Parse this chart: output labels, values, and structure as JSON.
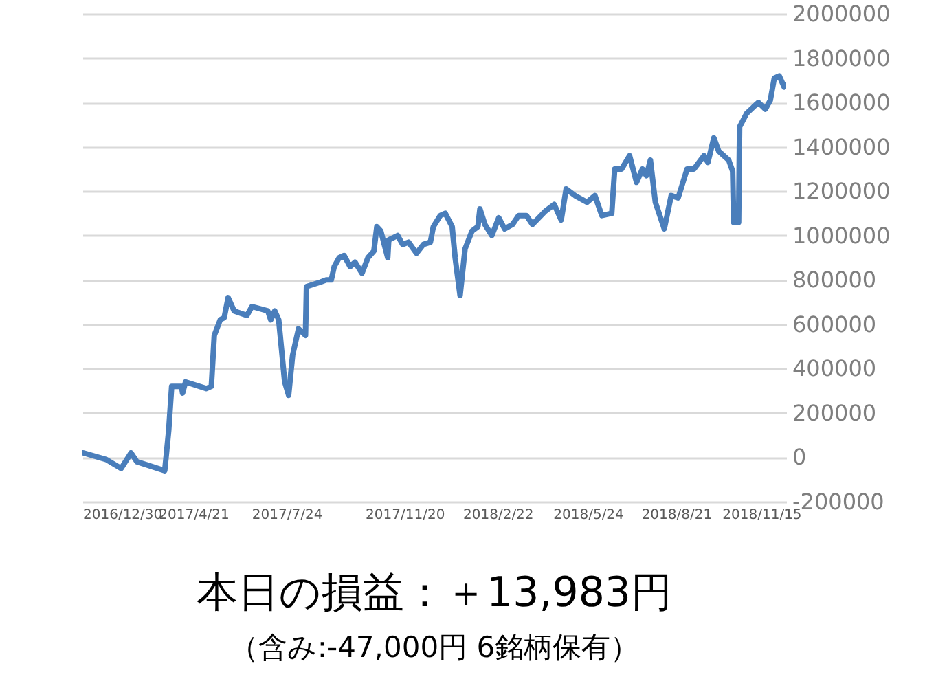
{
  "chart_data": {
    "type": "line",
    "title": "本日の損益：＋13,983円",
    "subtitle": "（含み:-47,000円  6銘柄保有）",
    "x": [
      "2016-12-31",
      "2017-01-23",
      "2017-02-07",
      "2017-02-17",
      "2017-02-23",
      "2017-03-09",
      "2017-03-23",
      "2017-03-27",
      "2017-03-30",
      "2017-04-09",
      "2017-04-10",
      "2017-04-13",
      "2017-05-04",
      "2017-05-09",
      "2017-05-12",
      "2017-05-18",
      "2017-05-22",
      "2017-05-26",
      "2017-06-01",
      "2017-06-14",
      "2017-06-19",
      "2017-07-05",
      "2017-07-08",
      "2017-07-12",
      "2017-07-16",
      "2017-07-22",
      "2017-07-26",
      "2017-07-30",
      "2017-08-05",
      "2017-08-12",
      "2017-08-13",
      "2017-08-27",
      "2017-09-02",
      "2017-09-07",
      "2017-09-10",
      "2017-09-15",
      "2017-09-20",
      "2017-09-26",
      "2017-10-01",
      "2017-10-08",
      "2017-10-14",
      "2017-10-20",
      "2017-10-23",
      "2017-10-27",
      "2017-11-03",
      "2017-11-04",
      "2017-11-13",
      "2017-11-18",
      "2017-11-24",
      "2017-12-02",
      "2017-12-09",
      "2017-12-16",
      "2017-12-19",
      "2017-12-26",
      "2017-12-31",
      "2018-01-07",
      "2018-01-10",
      "2018-01-15",
      "2018-01-20",
      "2018-01-27",
      "2018-02-02",
      "2018-02-04",
      "2018-02-09",
      "2018-02-16",
      "2018-02-23",
      "2018-03-01",
      "2018-03-09",
      "2018-03-15",
      "2018-03-23",
      "2018-03-29",
      "2018-04-11",
      "2018-04-20",
      "2018-04-27",
      "2018-05-02",
      "2018-05-11",
      "2018-05-23",
      "2018-05-31",
      "2018-06-07",
      "2018-06-17",
      "2018-06-20",
      "2018-06-27",
      "2018-07-05",
      "2018-07-12",
      "2018-07-18",
      "2018-07-22",
      "2018-07-26",
      "2018-07-31",
      "2018-08-09",
      "2018-08-16",
      "2018-08-23",
      "2018-09-01",
      "2018-09-08",
      "2018-09-18",
      "2018-09-22",
      "2018-09-28",
      "2018-10-03",
      "2018-10-13",
      "2018-10-17",
      "2018-10-18",
      "2018-10-23",
      "2018-10-24",
      "2018-10-31",
      "2018-11-07",
      "2018-11-12",
      "2018-11-19",
      "2018-11-24",
      "2018-11-28",
      "2018-12-03",
      "2018-12-08",
      "2018-12-10"
    ],
    "series": [
      {
        "color": "#4a7ebb",
        "values": [
          20000,
          -10000,
          -50000,
          20000,
          -20000,
          -40000,
          -60000,
          120000,
          320000,
          320000,
          290000,
          340000,
          310000,
          320000,
          550000,
          620000,
          630000,
          720000,
          660000,
          640000,
          680000,
          660000,
          620000,
          660000,
          620000,
          340000,
          280000,
          460000,
          580000,
          550000,
          770000,
          790000,
          800000,
          800000,
          860000,
          900000,
          910000,
          860000,
          880000,
          830000,
          900000,
          930000,
          1040000,
          1020000,
          900000,
          980000,
          1000000,
          960000,
          970000,
          920000,
          960000,
          970000,
          1040000,
          1090000,
          1100000,
          1040000,
          900000,
          730000,
          940000,
          1020000,
          1040000,
          1120000,
          1050000,
          1000000,
          1080000,
          1030000,
          1050000,
          1090000,
          1090000,
          1050000,
          1110000,
          1140000,
          1070000,
          1210000,
          1180000,
          1150000,
          1180000,
          1090000,
          1100000,
          1300000,
          1300000,
          1360000,
          1240000,
          1300000,
          1270000,
          1340000,
          1150000,
          1030000,
          1180000,
          1170000,
          1300000,
          1300000,
          1360000,
          1330000,
          1440000,
          1380000,
          1340000,
          1290000,
          1060000,
          1060000,
          1490000,
          1550000,
          1580000,
          1600000,
          1570000,
          1610000,
          1710000,
          1720000,
          1670000,
          1680000
        ]
      }
    ],
    "xlim": [
      "2016-12-30",
      "2018-12-10"
    ],
    "xticks": [
      {
        "value": "2016-12-30",
        "label": "2016/12/30"
      },
      {
        "value": "2017-04-21",
        "label": "2017/4/21"
      },
      {
        "value": "2017-07-24",
        "label": "2017/7/24"
      },
      {
        "value": "2017-11-20",
        "label": "2017/11/20"
      },
      {
        "value": "2018-02-22",
        "label": "2018/2/22"
      },
      {
        "value": "2018-05-24",
        "label": "2018/5/24"
      },
      {
        "value": "2018-08-21",
        "label": "2018/8/21"
      },
      {
        "value": "2018-11-15",
        "label": "2018/11/15"
      }
    ],
    "ylim": [
      -200000,
      2000000
    ],
    "yticks": [
      -200000,
      0,
      200000,
      400000,
      600000,
      800000,
      1000000,
      1200000,
      1400000,
      1600000,
      1800000,
      2000000
    ],
    "grid": "y",
    "line_style": "solid",
    "marker": "none"
  }
}
